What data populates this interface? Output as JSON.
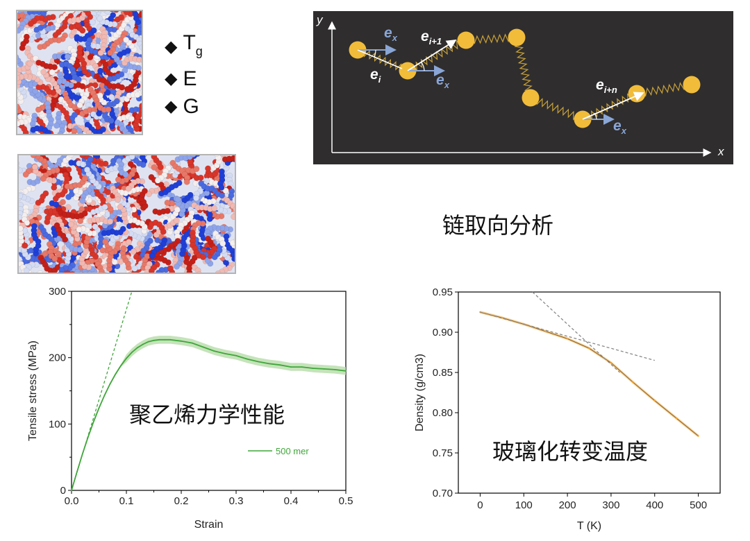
{
  "properties": [
    "T",
    "E",
    "G"
  ],
  "tg_subscript": "g",
  "labels": {
    "chain_orientation": "链取向分析",
    "mechanics": "聚乙烯力学性能",
    "glass_transition": "玻璃化转变温度"
  },
  "chain_diagram": {
    "y_axis": "y",
    "x_axis": "x",
    "vec_x": "e",
    "vec_x_sub": "x",
    "vec_i": "e",
    "vec_i_sub": "i",
    "vec_i1": "e",
    "vec_i1_sub": "i+1",
    "vec_in": "e",
    "vec_in_sub": "i+n",
    "colors": {
      "background": "#2f2d2d",
      "bead": "#f1bc3a",
      "spring": "#c9a23a",
      "vector": "#ffffff",
      "ex_vector": "#8aa6d6"
    }
  },
  "chart_data": [
    {
      "type": "line",
      "xlabel": "Strain",
      "ylabel": "Tensile stress (MPa)",
      "xlim": [
        0.0,
        0.5
      ],
      "ylim": [
        0,
        300
      ],
      "x_ticks": [
        "0.0",
        "0.1",
        "0.2",
        "0.3",
        "0.4",
        "0.5"
      ],
      "y_ticks": [
        "0",
        "100",
        "200",
        "300"
      ],
      "legend": "500 mer",
      "legend_position": "right-middle",
      "color": "#3fa63a",
      "band_color": "#b7dca9",
      "series": [
        {
          "name": "500 mer",
          "x": [
            0,
            0.01,
            0.02,
            0.03,
            0.04,
            0.05,
            0.06,
            0.07,
            0.08,
            0.09,
            0.1,
            0.11,
            0.12,
            0.13,
            0.14,
            0.15,
            0.16,
            0.17,
            0.18,
            0.2,
            0.22,
            0.24,
            0.26,
            0.28,
            0.3,
            0.32,
            0.34,
            0.36,
            0.38,
            0.4,
            0.42,
            0.44,
            0.46,
            0.48,
            0.5
          ],
          "y": [
            0,
            28,
            55,
            80,
            103,
            124,
            143,
            160,
            175,
            188,
            199,
            208,
            215,
            220,
            224,
            226,
            227,
            227,
            227,
            225,
            222,
            216,
            210,
            206,
            203,
            198,
            194,
            191,
            189,
            186,
            186,
            184,
            183,
            182,
            180
          ]
        }
      ],
      "dashed_fit": {
        "x": [
          0.0,
          0.11
        ],
        "y": [
          0,
          300
        ]
      }
    },
    {
      "type": "line",
      "xlabel": "T (K)",
      "ylabel": "Density (g/cm3)",
      "xlim": [
        -50,
        550
      ],
      "ylim": [
        0.7,
        0.95
      ],
      "x_ticks": [
        "0",
        "100",
        "200",
        "300",
        "400",
        "500"
      ],
      "y_ticks": [
        "0.70",
        "0.75",
        "0.80",
        "0.85",
        "0.90",
        "0.95"
      ],
      "color": "#f0a22c",
      "series": [
        {
          "name": "",
          "x": [
            0,
            50,
            100,
            150,
            200,
            250,
            300,
            350,
            400,
            450,
            500
          ],
          "y": [
            0.925,
            0.918,
            0.91,
            0.901,
            0.892,
            0.88,
            0.862,
            0.838,
            0.815,
            0.793,
            0.771
          ]
        }
      ],
      "fit_low": {
        "x": [
          0,
          400
        ],
        "y": [
          0.925,
          0.865
        ]
      },
      "fit_high": {
        "x": [
          120,
          320
        ],
        "y": [
          0.95,
          0.85
        ]
      }
    }
  ]
}
